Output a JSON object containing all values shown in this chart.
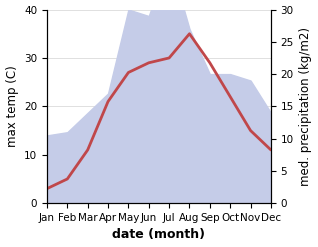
{
  "months": [
    "Jan",
    "Feb",
    "Mar",
    "Apr",
    "May",
    "Jun",
    "Jul",
    "Aug",
    "Sep",
    "Oct",
    "Nov",
    "Dec"
  ],
  "temperature": [
    3,
    5,
    11,
    21,
    27,
    29,
    30,
    35,
    29,
    22,
    15,
    11
  ],
  "precipitation": [
    10.5,
    11,
    14,
    17,
    30,
    29,
    38,
    27,
    20,
    20,
    19,
    14
  ],
  "temp_color": "#c0474a",
  "precip_fill_color": "#c5cce8",
  "temp_ylim": [
    0,
    40
  ],
  "precip_ylim": [
    0,
    30
  ],
  "left_yticks": [
    0,
    10,
    20,
    30,
    40
  ],
  "right_yticks": [
    0,
    5,
    10,
    15,
    20,
    25,
    30
  ],
  "xlabel": "date (month)",
  "ylabel_left": "max temp (C)",
  "ylabel_right": "med. precipitation (kg/m2)",
  "background_color": "#ffffff",
  "temp_linewidth": 2.0,
  "xlabel_fontsize": 9,
  "ylabel_fontsize": 8.5,
  "tick_fontsize": 7.5
}
